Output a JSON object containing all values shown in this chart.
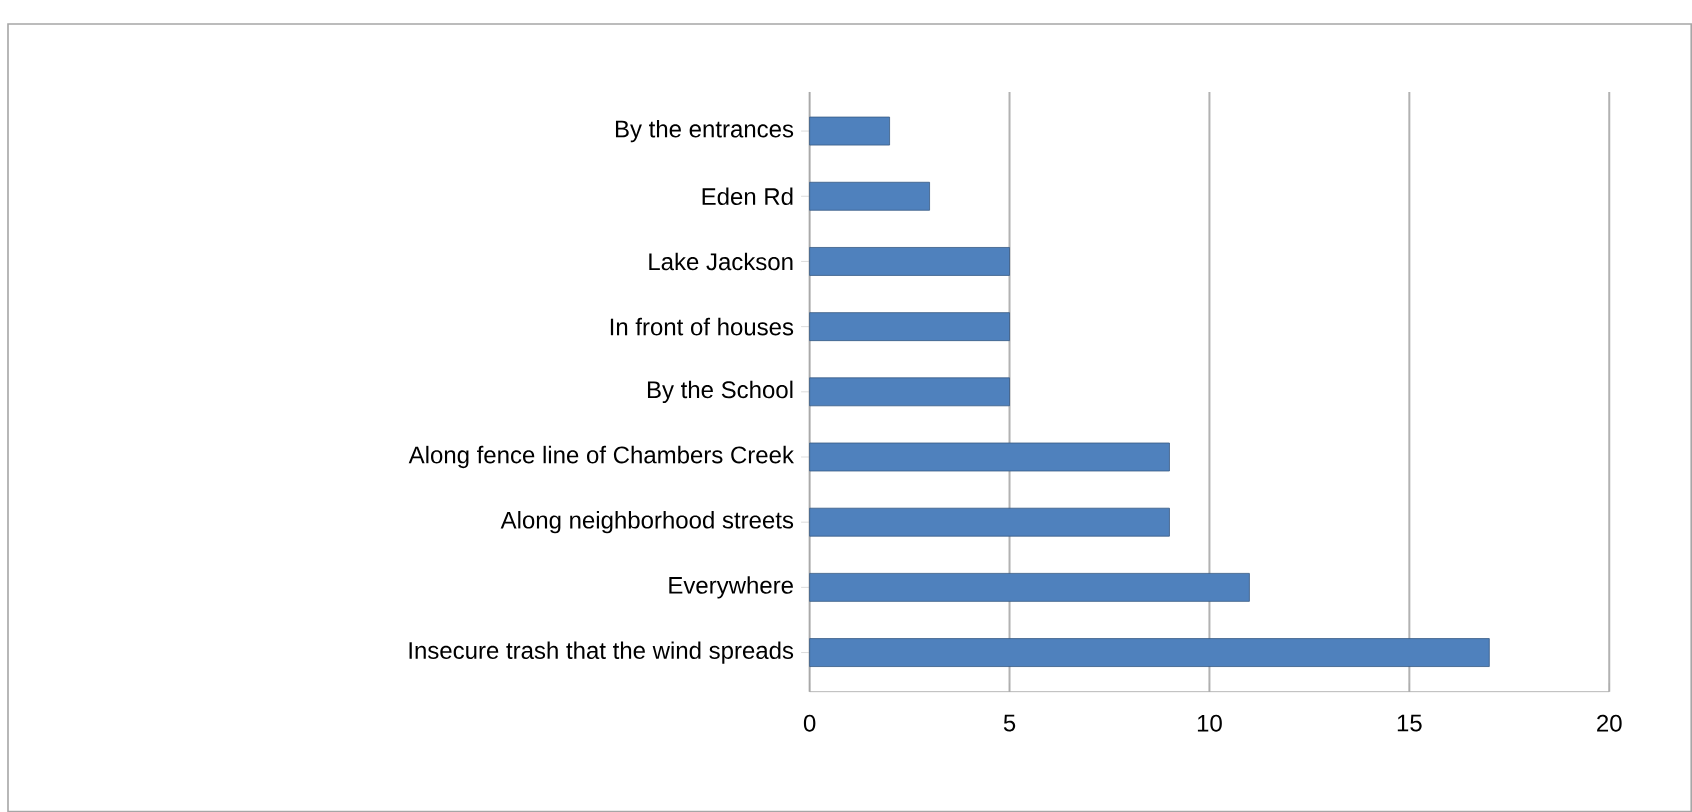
{
  "chart_data": {
    "type": "bar",
    "orientation": "horizontal",
    "categories": [
      "By the entrances",
      "Eden Rd",
      "Lake Jackson",
      "In front of houses",
      "By the School",
      "Along fence line of Chambers Creek",
      "Along neighborhood streets",
      "Everywhere",
      "Insecure trash that the wind spreads"
    ],
    "values": [
      2,
      3,
      5,
      5,
      5,
      9,
      9,
      11,
      17
    ],
    "color": "#4f81bd",
    "xlim": [
      0,
      20
    ],
    "xticks": [
      0,
      5,
      10,
      15,
      20
    ],
    "grid": "x"
  }
}
